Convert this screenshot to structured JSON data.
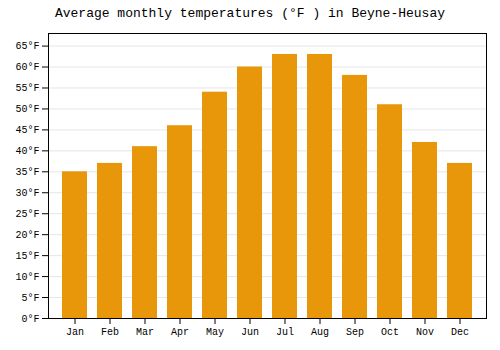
{
  "chart_data": {
    "type": "bar",
    "title": "Average monthly temperatures (°F ) in Beyne-Heusay",
    "categories": [
      "Jan",
      "Feb",
      "Mar",
      "Apr",
      "May",
      "Jun",
      "Jul",
      "Aug",
      "Sep",
      "Oct",
      "Nov",
      "Dec"
    ],
    "values": [
      35,
      37,
      41,
      46,
      54,
      60,
      63,
      63,
      58,
      51,
      42,
      37
    ],
    "color": "#E8960A",
    "ylim": [
      0,
      68
    ],
    "yticks": [
      {
        "value": 0,
        "label": "0°F"
      },
      {
        "value": 5,
        "label": "5°F"
      },
      {
        "value": 10,
        "label": "10°F"
      },
      {
        "value": 15,
        "label": "15°F"
      },
      {
        "value": 20,
        "label": "20°F"
      },
      {
        "value": 25,
        "label": "25°F"
      },
      {
        "value": 30,
        "label": "30°F"
      },
      {
        "value": 35,
        "label": "35°F"
      },
      {
        "value": 40,
        "label": "40°F"
      },
      {
        "value": 45,
        "label": "45°F"
      },
      {
        "value": 50,
        "label": "50°F"
      },
      {
        "value": 55,
        "label": "55°F"
      },
      {
        "value": 60,
        "label": "60°F"
      },
      {
        "value": 65,
        "label": "65°F"
      }
    ],
    "grid": true
  }
}
